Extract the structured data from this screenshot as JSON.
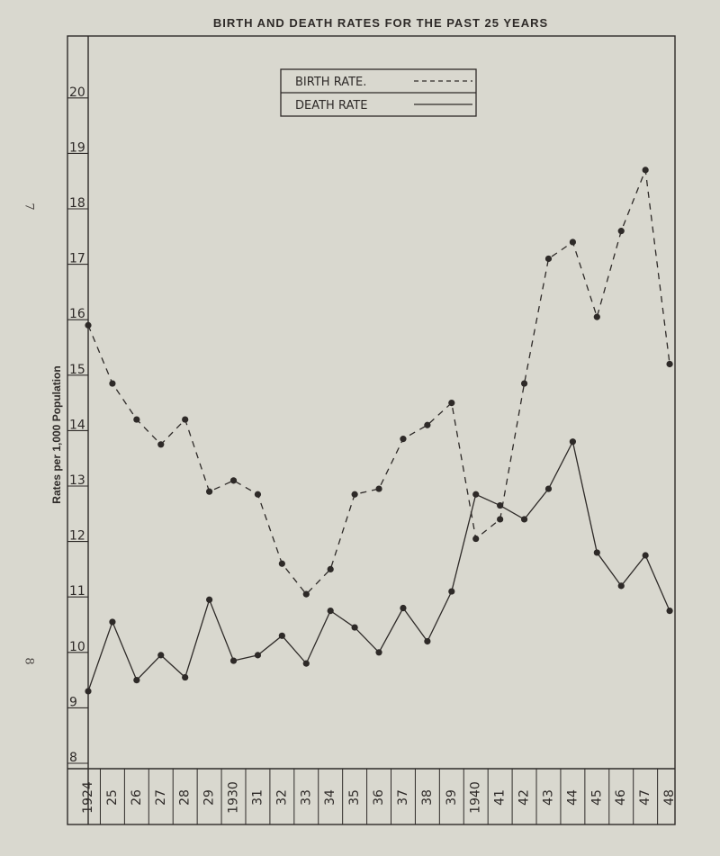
{
  "chart_data": {
    "type": "line",
    "title": "BIRTH AND DEATH RATES FOR THE PAST 25 YEARS",
    "ylabel": "Rates per 1,000 Population",
    "xlabel": "",
    "categories": [
      "1924",
      "25",
      "26",
      "27",
      "28",
      "29",
      "1930",
      "31",
      "32",
      "33",
      "34",
      "35",
      "36",
      "37",
      "38",
      "39",
      "1940",
      "41",
      "42",
      "43",
      "44",
      "45",
      "46",
      "47",
      "48"
    ],
    "ylim": [
      8,
      21
    ],
    "y_ticks": [
      "8",
      "9",
      "10",
      "11",
      "12",
      "13",
      "14",
      "15",
      "16",
      "17",
      "18",
      "19",
      "20"
    ],
    "legend_position": "top-center",
    "grid": false,
    "series": [
      {
        "name": "BIRTH RATE.",
        "style": "dashed",
        "color": "#2e2a28",
        "values": [
          15.9,
          14.85,
          14.2,
          13.75,
          14.2,
          12.9,
          13.1,
          12.85,
          11.6,
          11.05,
          11.5,
          12.85,
          12.95,
          13.85,
          14.1,
          14.5,
          12.05,
          12.4,
          14.85,
          17.1,
          17.4,
          16.05,
          17.6,
          18.7,
          15.2
        ]
      },
      {
        "name": "DEATH RATE",
        "style": "solid",
        "color": "#2e2a28",
        "values": [
          9.3,
          10.55,
          9.5,
          9.95,
          9.55,
          10.95,
          9.85,
          9.95,
          10.3,
          9.8,
          10.75,
          10.45,
          10.0,
          10.8,
          10.2,
          11.1,
          12.85,
          12.65,
          12.4,
          12.95,
          13.8,
          11.8,
          11.2,
          11.75,
          10.75
        ]
      }
    ]
  },
  "margin_marks": {
    "top": "7",
    "bottom": "8"
  }
}
